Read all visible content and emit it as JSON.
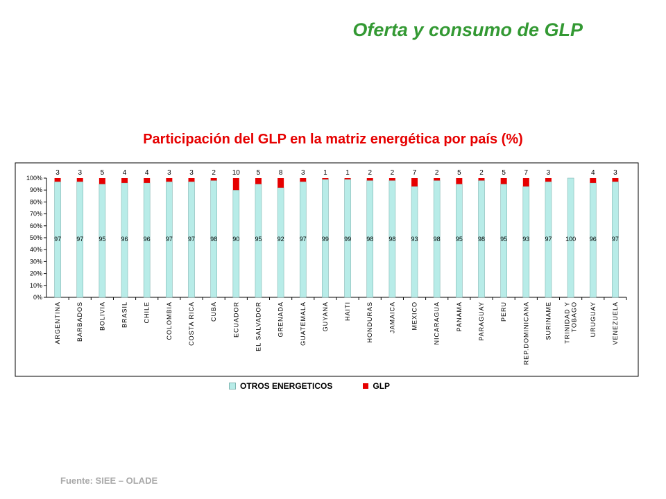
{
  "slide": {
    "title": "Oferta y consumo de GLP",
    "source": "Fuente: SIEE – OLADE"
  },
  "colors": {
    "title_green": "#339933",
    "chart_title_red": "#e60000",
    "otros": "#b8ece8",
    "glp": "#e60000",
    "source_gray": "#a9a9a9"
  },
  "chart_data": {
    "type": "bar",
    "stacked": true,
    "title": "Participación del GLP en la matriz energética por país (%)",
    "xlabel": "",
    "ylabel": "",
    "ylim": [
      0,
      100
    ],
    "yticks": [
      "0%",
      "10%",
      "20%",
      "30%",
      "40%",
      "50%",
      "60%",
      "70%",
      "80%",
      "90%",
      "100%"
    ],
    "legend_position": "bottom",
    "categories": [
      "ARGENTINA",
      "BARBADOS",
      "BOLIVIA",
      "BRASIL",
      "CHILE",
      "COLOMBIA",
      "COSTA RICA",
      "CUBA",
      "ECUADOR",
      "EL SALVADOR",
      "GRENADA",
      "GUATEMALA",
      "GUYANA",
      "HAITI",
      "HONDURAS",
      "JAMAICA",
      "MEXICO",
      "NICARAGUA",
      "PANAMA",
      "PARAGUAY",
      "PERU",
      "REP.DOMINICANA",
      "SURINAME",
      "TRINIDAD Y TOBAGO",
      "URUGUAY",
      "VENEZUELA"
    ],
    "series": [
      {
        "name": "OTROS ENERGETICOS",
        "values": [
          97,
          97,
          95,
          96,
          96,
          97,
          97,
          98,
          90,
          95,
          92,
          97,
          99,
          99,
          98,
          98,
          93,
          98,
          95,
          98,
          95,
          93,
          97,
          100,
          96,
          97
        ]
      },
      {
        "name": "GLP",
        "values": [
          3,
          3,
          5,
          4,
          4,
          3,
          3,
          2,
          10,
          5,
          8,
          3,
          1,
          1,
          2,
          2,
          7,
          2,
          5,
          2,
          5,
          7,
          3,
          null,
          4,
          3
        ]
      }
    ]
  }
}
